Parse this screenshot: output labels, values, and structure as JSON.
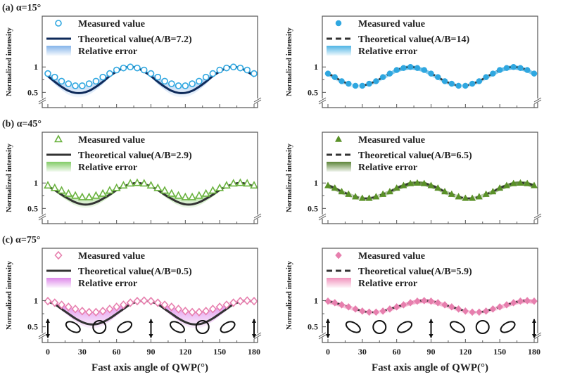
{
  "figure": {
    "x_axis_title": "Fast axis angle of QWP(°)",
    "y_axis_title": "Normalized intensity"
  },
  "colors": {
    "a_marker": "#2fa7e0",
    "a_theory_left": "#0e2a5a",
    "a_band": "#6fa6e6",
    "b_marker": "#6ab23e",
    "b_marker_right": "#5a9128",
    "b_band": "#6cc24a",
    "b_band_right": "#3f6e14",
    "c_marker": "#e77fae",
    "c_band": "#d873e6",
    "c_band_right": "#ef7fb0",
    "theory_dark": "#333333"
  },
  "chart_data": [
    {
      "type": "line",
      "row": "a",
      "side": "left",
      "title": "(a) α=15°",
      "xlabel": "Fast axis angle of QWP(°)",
      "ylabel": "Normalized intensity",
      "xlim": [
        -5,
        182
      ],
      "ylim": [
        0.2,
        2.0
      ],
      "yticks": [
        "1",
        "0.5"
      ],
      "ytick_values": [
        1,
        0.5
      ],
      "xticks": [
        0,
        30,
        60,
        90,
        120,
        150,
        180
      ],
      "show_xtick_labels": false,
      "legend": {
        "measured": "Measured value",
        "theory": "Theoretical value(A/B=7.2)",
        "error": "Relative error"
      },
      "marker": "circle-open",
      "theory_style": "solid",
      "x": [
        0,
        6,
        12,
        18,
        24,
        30,
        36,
        42,
        48,
        54,
        60,
        66,
        72,
        78,
        84,
        90,
        96,
        102,
        108,
        114,
        120,
        126,
        132,
        138,
        144,
        150,
        156,
        162,
        168,
        174,
        180
      ],
      "measured": [
        0.87,
        0.8,
        0.72,
        0.67,
        0.63,
        0.63,
        0.67,
        0.72,
        0.8,
        0.87,
        0.94,
        0.98,
        1.0,
        0.98,
        0.94,
        0.87,
        0.8,
        0.72,
        0.67,
        0.63,
        0.63,
        0.67,
        0.72,
        0.8,
        0.87,
        0.94,
        0.98,
        1.0,
        0.98,
        0.94,
        0.87
      ],
      "theoretical": [
        0.82,
        0.71,
        0.61,
        0.53,
        0.49,
        0.49,
        0.53,
        0.61,
        0.71,
        0.82,
        0.91,
        0.98,
        1.0,
        0.98,
        0.91,
        0.82,
        0.71,
        0.61,
        0.53,
        0.49,
        0.49,
        0.53,
        0.61,
        0.71,
        0.82,
        0.91,
        0.98,
        1.0,
        0.98,
        0.91,
        0.82
      ]
    },
    {
      "type": "line",
      "row": "a",
      "side": "right",
      "xlim": [
        -5,
        182
      ],
      "ylim": [
        0.2,
        2.0
      ],
      "yticks": [
        "1",
        "0.5"
      ],
      "ytick_values": [
        1,
        0.5
      ],
      "xticks": [
        0,
        30,
        60,
        90,
        120,
        150,
        180
      ],
      "show_xtick_labels": false,
      "legend": {
        "measured": "Measured value",
        "theory": "Theoretical value(A/B=14)",
        "error": "Relative error"
      },
      "marker": "circle-filled",
      "theory_style": "dashed",
      "x": [
        0,
        6,
        12,
        18,
        24,
        30,
        36,
        42,
        48,
        54,
        60,
        66,
        72,
        78,
        84,
        90,
        96,
        102,
        108,
        114,
        120,
        126,
        132,
        138,
        144,
        150,
        156,
        162,
        168,
        174,
        180
      ],
      "measured": [
        0.87,
        0.8,
        0.72,
        0.67,
        0.63,
        0.63,
        0.67,
        0.72,
        0.8,
        0.87,
        0.94,
        0.98,
        1.0,
        0.98,
        0.94,
        0.87,
        0.8,
        0.72,
        0.67,
        0.63,
        0.63,
        0.67,
        0.72,
        0.8,
        0.87,
        0.94,
        0.98,
        1.0,
        0.98,
        0.94,
        0.87
      ],
      "theoretical": [
        0.87,
        0.8,
        0.72,
        0.67,
        0.63,
        0.63,
        0.67,
        0.72,
        0.8,
        0.87,
        0.94,
        0.98,
        1.0,
        0.98,
        0.94,
        0.87,
        0.8,
        0.72,
        0.67,
        0.63,
        0.63,
        0.67,
        0.72,
        0.8,
        0.87,
        0.94,
        0.98,
        1.0,
        0.98,
        0.94,
        0.87
      ]
    },
    {
      "type": "line",
      "row": "b",
      "side": "left",
      "title": "(b) α=45°",
      "xlim": [
        -5,
        182
      ],
      "ylim": [
        0.2,
        2.0
      ],
      "yticks": [
        "1",
        "0.5"
      ],
      "ytick_values": [
        1,
        0.5
      ],
      "xticks": [
        0,
        30,
        60,
        90,
        120,
        150,
        180
      ],
      "show_xtick_labels": false,
      "legend": {
        "measured": "Measured value",
        "theory": "Theoretical value(A/B=2.9)",
        "error": "Relative error"
      },
      "marker": "triangle-open",
      "theory_style": "solid",
      "x": [
        0,
        6,
        12,
        18,
        24,
        30,
        36,
        42,
        48,
        54,
        60,
        66,
        72,
        78,
        84,
        90,
        96,
        102,
        108,
        114,
        120,
        126,
        132,
        138,
        144,
        150,
        156,
        162,
        168,
        174,
        180
      ],
      "measured": [
        0.95,
        0.9,
        0.85,
        0.79,
        0.75,
        0.72,
        0.72,
        0.75,
        0.79,
        0.85,
        0.9,
        0.95,
        0.99,
        1.0,
        0.99,
        0.95,
        0.9,
        0.85,
        0.79,
        0.75,
        0.72,
        0.72,
        0.75,
        0.79,
        0.85,
        0.9,
        0.95,
        0.99,
        1.0,
        0.99,
        0.95
      ],
      "theoretical": [
        0.93,
        0.86,
        0.77,
        0.69,
        0.62,
        0.58,
        0.58,
        0.62,
        0.69,
        0.77,
        0.86,
        0.93,
        0.98,
        1.0,
        0.98,
        0.93,
        0.86,
        0.77,
        0.69,
        0.62,
        0.58,
        0.58,
        0.62,
        0.69,
        0.77,
        0.86,
        0.93,
        0.98,
        1.0,
        0.98,
        0.93
      ]
    },
    {
      "type": "line",
      "row": "b",
      "side": "right",
      "xlim": [
        -5,
        182
      ],
      "ylim": [
        0.2,
        2.0
      ],
      "yticks": [
        "1",
        "0.5"
      ],
      "ytick_values": [
        1,
        0.5
      ],
      "xticks": [
        0,
        30,
        60,
        90,
        120,
        150,
        180
      ],
      "show_xtick_labels": false,
      "legend": {
        "measured": "Measured value",
        "theory": "Theoretical value(A/B=6.5)",
        "error": "Relative error"
      },
      "marker": "triangle-filled",
      "theory_style": "dashed",
      "x": [
        0,
        6,
        12,
        18,
        24,
        30,
        36,
        42,
        48,
        54,
        60,
        66,
        72,
        78,
        84,
        90,
        96,
        102,
        108,
        114,
        120,
        126,
        132,
        138,
        144,
        150,
        156,
        162,
        168,
        174,
        180
      ],
      "measured": [
        0.95,
        0.9,
        0.83,
        0.78,
        0.73,
        0.7,
        0.7,
        0.73,
        0.78,
        0.83,
        0.9,
        0.95,
        0.99,
        1.0,
        0.99,
        0.95,
        0.9,
        0.83,
        0.78,
        0.73,
        0.7,
        0.7,
        0.73,
        0.78,
        0.83,
        0.9,
        0.95,
        0.99,
        1.0,
        0.99,
        0.95
      ],
      "theoretical": [
        0.95,
        0.9,
        0.83,
        0.78,
        0.73,
        0.7,
        0.7,
        0.73,
        0.78,
        0.83,
        0.9,
        0.95,
        0.99,
        1.0,
        0.99,
        0.95,
        0.9,
        0.83,
        0.78,
        0.73,
        0.7,
        0.7,
        0.73,
        0.78,
        0.83,
        0.9,
        0.95,
        0.99,
        1.0,
        0.99,
        0.95
      ]
    },
    {
      "type": "line",
      "row": "c",
      "side": "left",
      "title": "(c) α=75°",
      "xlim": [
        -5,
        182
      ],
      "ylim": [
        0.2,
        2.0
      ],
      "yticks": [
        "1",
        "0.5"
      ],
      "ytick_values": [
        1,
        0.5
      ],
      "xticks": [
        0,
        30,
        60,
        90,
        120,
        150,
        180
      ],
      "xtick_labels": [
        "0",
        "30",
        "60",
        "90",
        "120",
        "150",
        "180"
      ],
      "show_xtick_labels": true,
      "legend": {
        "measured": "Measured value",
        "theory": "Theoretical value(A/B=0.5)",
        "error": "Relative error"
      },
      "marker": "diamond-open",
      "theory_style": "solid",
      "x": [
        0,
        6,
        12,
        18,
        24,
        30,
        36,
        42,
        48,
        54,
        60,
        66,
        72,
        78,
        84,
        90,
        96,
        102,
        108,
        114,
        120,
        126,
        132,
        138,
        144,
        150,
        156,
        162,
        168,
        174,
        180
      ],
      "measured": [
        0.99,
        0.96,
        0.92,
        0.88,
        0.84,
        0.8,
        0.78,
        0.78,
        0.8,
        0.84,
        0.88,
        0.92,
        0.96,
        0.99,
        1.0,
        0.99,
        0.96,
        0.92,
        0.88,
        0.84,
        0.8,
        0.78,
        0.78,
        0.8,
        0.84,
        0.88,
        0.92,
        0.96,
        0.99,
        1.0,
        0.99
      ],
      "theoretical": [
        0.98,
        0.93,
        0.84,
        0.75,
        0.66,
        0.59,
        0.55,
        0.55,
        0.59,
        0.66,
        0.75,
        0.84,
        0.93,
        0.98,
        1.0,
        0.98,
        0.93,
        0.84,
        0.75,
        0.66,
        0.59,
        0.55,
        0.55,
        0.59,
        0.66,
        0.75,
        0.84,
        0.93,
        0.98,
        1.0,
        0.98
      ]
    },
    {
      "type": "line",
      "row": "c",
      "side": "right",
      "xlim": [
        -5,
        182
      ],
      "ylim": [
        0.2,
        2.0
      ],
      "yticks": [
        "1",
        "0.5"
      ],
      "ytick_values": [
        1,
        0.5
      ],
      "xticks": [
        0,
        30,
        60,
        90,
        120,
        150,
        180
      ],
      "xtick_labels": [
        "0",
        "30",
        "60",
        "90",
        "120",
        "150",
        "180"
      ],
      "show_xtick_labels": true,
      "legend": {
        "measured": "Measured value",
        "theory": "Theoretical value(A/B=5.9)",
        "error": "Relative error"
      },
      "marker": "diamond-filled",
      "theory_style": "dashed",
      "x": [
        0,
        6,
        12,
        18,
        24,
        30,
        36,
        42,
        48,
        54,
        60,
        66,
        72,
        78,
        84,
        90,
        96,
        102,
        108,
        114,
        120,
        126,
        132,
        138,
        144,
        150,
        156,
        162,
        168,
        174,
        180
      ],
      "measured": [
        0.99,
        0.96,
        0.92,
        0.88,
        0.84,
        0.8,
        0.78,
        0.78,
        0.8,
        0.84,
        0.88,
        0.92,
        0.96,
        0.99,
        1.0,
        0.99,
        0.96,
        0.92,
        0.88,
        0.84,
        0.8,
        0.78,
        0.78,
        0.8,
        0.84,
        0.88,
        0.92,
        0.96,
        0.99,
        1.0,
        0.99
      ],
      "theoretical": [
        0.99,
        0.96,
        0.92,
        0.88,
        0.84,
        0.8,
        0.78,
        0.78,
        0.8,
        0.84,
        0.88,
        0.92,
        0.96,
        0.99,
        1.0,
        0.99,
        0.96,
        0.92,
        0.88,
        0.84,
        0.8,
        0.78,
        0.78,
        0.8,
        0.84,
        0.88,
        0.92,
        0.96,
        0.99,
        1.0,
        0.99
      ]
    }
  ]
}
